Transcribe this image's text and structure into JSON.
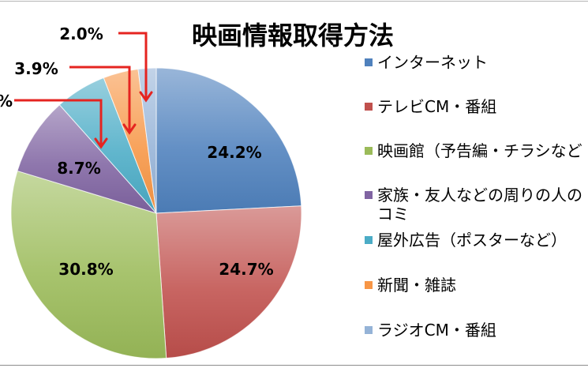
{
  "chart_data": {
    "type": "pie",
    "title": "映画情報取得方法",
    "legend": "right",
    "slices": [
      {
        "category": "インターネット",
        "value": 24.2,
        "label": "24.2%",
        "color": "#4F81BD"
      },
      {
        "category": "テレビCM・番組",
        "value": 24.7,
        "label": "24.7%",
        "color": "#C0504D"
      },
      {
        "category": "映画館（予告編・チラシなど",
        "value": 30.8,
        "label": "30.8%",
        "color": "#9BBB59"
      },
      {
        "category": "家族・友人などの周りの人の",
        "category_line2": "コミ",
        "value": 8.7,
        "label": "8.7%",
        "color": "#8064A2"
      },
      {
        "category": "屋外広告（ポスターなど）",
        "value": 5.7,
        "label": "%",
        "color": "#4BACC6"
      },
      {
        "category": "新聞・雑誌",
        "value": 3.9,
        "label": "3.9%",
        "color": "#F79646"
      },
      {
        "category": "ラジオCM・番組",
        "value": 2.0,
        "label": "2.0%",
        "color": "#95B3D7"
      }
    ],
    "callout_arrow_color": "#E52420"
  }
}
